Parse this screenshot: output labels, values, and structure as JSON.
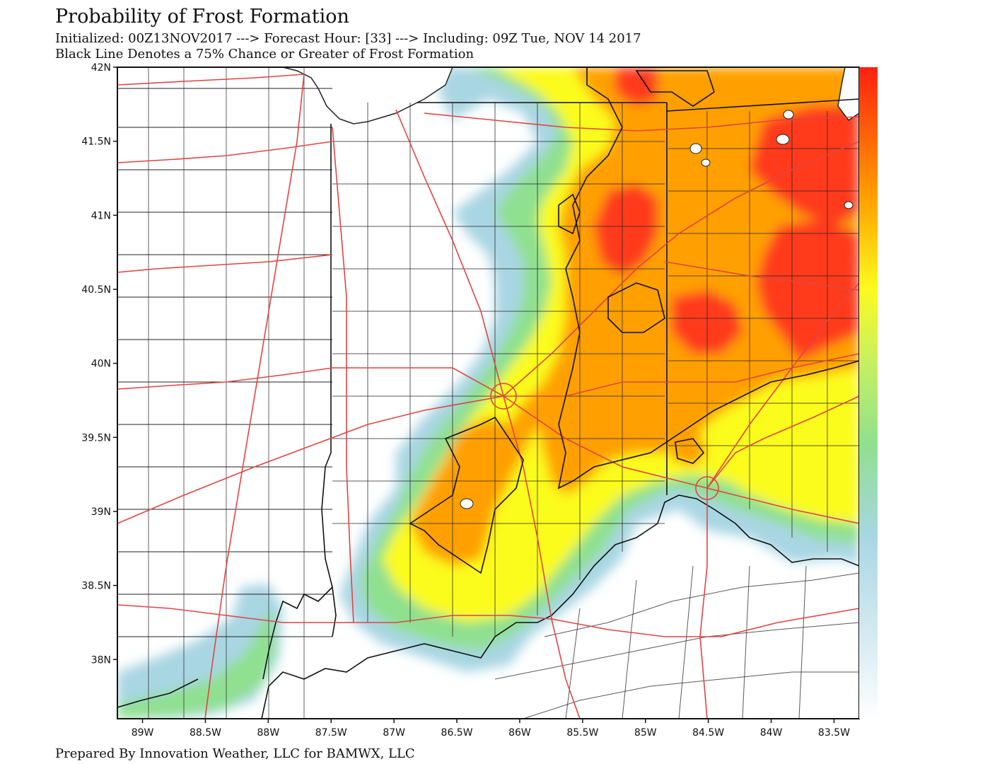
{
  "header": {
    "title": "Probability of Frost Formation",
    "line1": "Initialized: 00Z13NOV2017 ---> Forecast Hour: [33] ---> Including: 09Z Tue, NOV 14 2017",
    "line2": "Black Line Denotes a 75% Chance or Greater of Frost Formation"
  },
  "footer": {
    "credit": "Prepared By Innovation Weather, LLC for BAMWX, LLC"
  },
  "map": {
    "lon_range": [
      -89.2,
      -83.3
    ],
    "lat_range": [
      37.6,
      42.0
    ],
    "lat_ticks": [
      {
        "value": 42.0,
        "label": "42N"
      },
      {
        "value": 41.5,
        "label": "41.5N"
      },
      {
        "value": 41.0,
        "label": "41N"
      },
      {
        "value": 40.5,
        "label": "40.5N"
      },
      {
        "value": 40.0,
        "label": "40N"
      },
      {
        "value": 39.5,
        "label": "39.5N"
      },
      {
        "value": 39.0,
        "label": "39N"
      },
      {
        "value": 38.5,
        "label": "38.5N"
      },
      {
        "value": 38.0,
        "label": "38N"
      }
    ],
    "lon_ticks": [
      {
        "value": -89.0,
        "label": "89W"
      },
      {
        "value": -88.5,
        "label": "88.5W"
      },
      {
        "value": -88.0,
        "label": "88W"
      },
      {
        "value": -87.5,
        "label": "87.5W"
      },
      {
        "value": -87.0,
        "label": "87W"
      },
      {
        "value": -86.5,
        "label": "86.5W"
      },
      {
        "value": -86.0,
        "label": "86W"
      },
      {
        "value": -85.5,
        "label": "85.5W"
      },
      {
        "value": -85.0,
        "label": "85W"
      },
      {
        "value": -84.5,
        "label": "84.5W"
      },
      {
        "value": -84.0,
        "label": "84W"
      },
      {
        "value": -83.5,
        "label": "83.5W"
      }
    ],
    "colors": {
      "blue": "#a9d6e3",
      "green": "#8fe08f",
      "yellow": "#fbfb1e",
      "orange": "#ffa000",
      "red": "#ff3a1a",
      "roads": "#e04444",
      "boundaries": "#222222",
      "lake_fill": "#ffffff"
    }
  }
}
